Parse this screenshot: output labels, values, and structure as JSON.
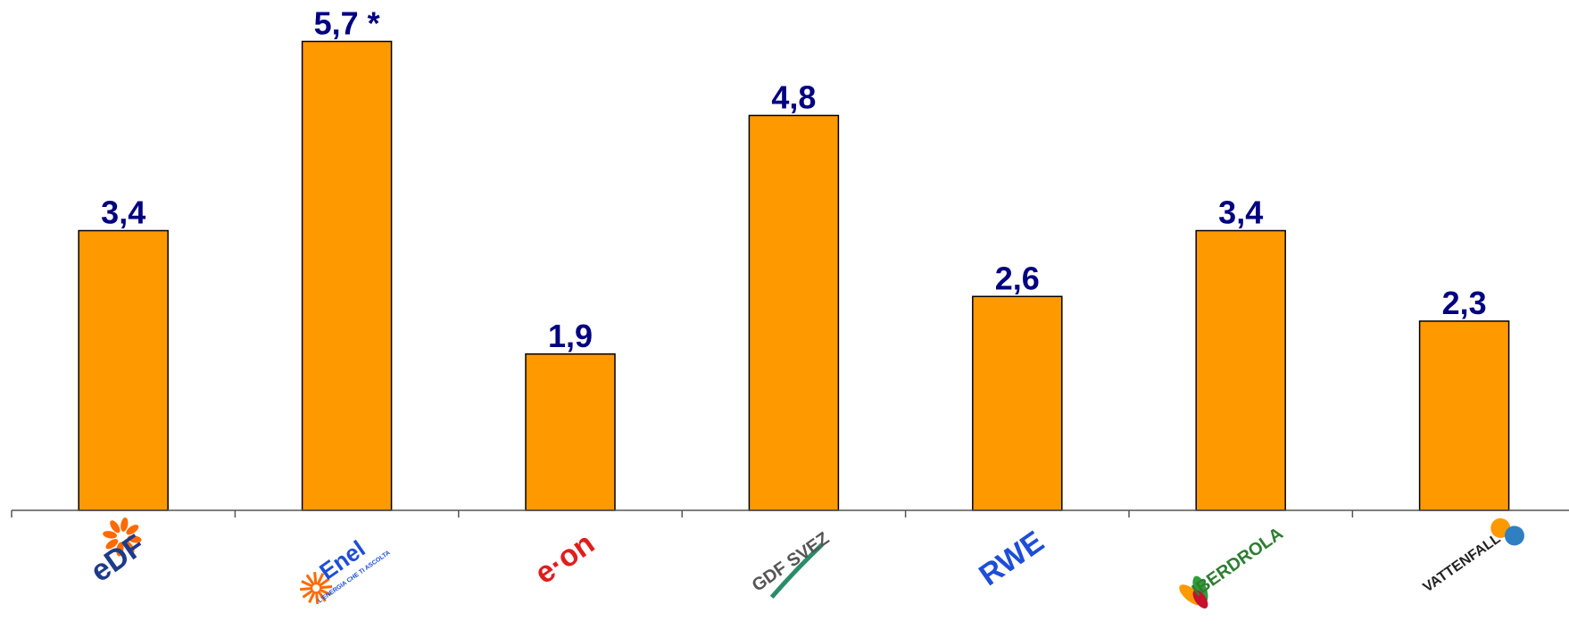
{
  "chart_data": {
    "type": "bar",
    "categories": [
      "EDF",
      "Enel",
      "E.ON",
      "GDF SUEZ",
      "RWE",
      "IBERDROLA",
      "VATTENFALL"
    ],
    "values": [
      3.4,
      5.7,
      1.9,
      4.8,
      2.6,
      3.4,
      2.3
    ],
    "data_labels": [
      "3,4",
      "5,7 *",
      "1,9",
      "4,8",
      "2,6",
      "3,4",
      "2,3"
    ],
    "title": "",
    "xlabel": "",
    "ylabel": "",
    "ylim": [
      0,
      6
    ],
    "grid": false,
    "legend": "none",
    "bar_color": "#FF9900",
    "label_color": "#000080"
  },
  "logos": [
    {
      "icon": "edf-logo",
      "text": "eDF",
      "color": "#1e3a8a"
    },
    {
      "icon": "enel-logo",
      "text": "Enel",
      "subtext": "L'ENERGIA CHE TI ASCOLTA",
      "color": "#1d4ed8"
    },
    {
      "icon": "eon-logo",
      "text": "e·on",
      "color": "#e11d1d"
    },
    {
      "icon": "gdf-suez-logo",
      "text": "GDF SVEZ",
      "color": "#555555"
    },
    {
      "icon": "rwe-logo",
      "text": "RWE",
      "color": "#1d4ed8"
    },
    {
      "icon": "iberdrola-logo",
      "text": "IBERDROLA",
      "color": "#2e7d32"
    },
    {
      "icon": "vattenfall-logo",
      "text": "VATTENFALL",
      "color": "#222222"
    }
  ]
}
